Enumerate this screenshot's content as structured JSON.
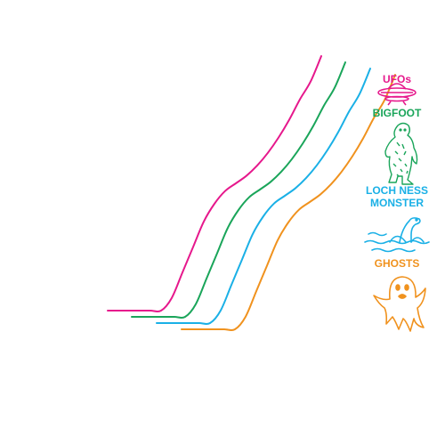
{
  "chart_data": {
    "type": "line",
    "x": [
      0,
      1,
      2,
      3,
      4,
      5,
      6,
      7,
      8,
      9,
      10,
      11,
      12,
      13,
      14,
      15,
      16,
      17,
      18,
      19,
      20
    ],
    "ylim": [
      0,
      100
    ],
    "grid": false,
    "legend_position": "right",
    "series": [
      {
        "name": "UFOs",
        "color": "#e6188c",
        "icon": "ufo-icon",
        "values": [
          0,
          0,
          0,
          0,
          0,
          0,
          5,
          15,
          25,
          35,
          42,
          47,
          50,
          53,
          57,
          62,
          68,
          75,
          83,
          90,
          100
        ]
      },
      {
        "name": "BIGFOOT",
        "color": "#1aa55a",
        "icon": "bigfoot-icon",
        "values": [
          0,
          0,
          0,
          0,
          0,
          0,
          5,
          15,
          25,
          35,
          42,
          47,
          50,
          53,
          57,
          62,
          68,
          75,
          83,
          90,
          100
        ]
      },
      {
        "name": "LOCH NESS MONSTER",
        "color": "#1ab0e6",
        "icon": "loch-ness-monster-icon",
        "values": [
          0,
          0,
          0,
          0,
          0,
          0,
          5,
          15,
          25,
          35,
          42,
          47,
          50,
          53,
          57,
          62,
          68,
          75,
          83,
          90,
          100
        ]
      },
      {
        "name": "GHOSTS",
        "color": "#f0921e",
        "icon": "ghost-icon",
        "values": [
          0,
          0,
          0,
          0,
          0,
          0,
          5,
          15,
          25,
          35,
          42,
          47,
          50,
          53,
          57,
          62,
          68,
          75,
          83,
          90,
          100
        ]
      }
    ]
  },
  "legend": {
    "ufos": "UFOs",
    "bigfoot": "BIGFOOT",
    "loch_ness_line1": "LOCH NESS",
    "loch_ness_line2": "MONSTER",
    "ghosts": "GHOSTS"
  }
}
